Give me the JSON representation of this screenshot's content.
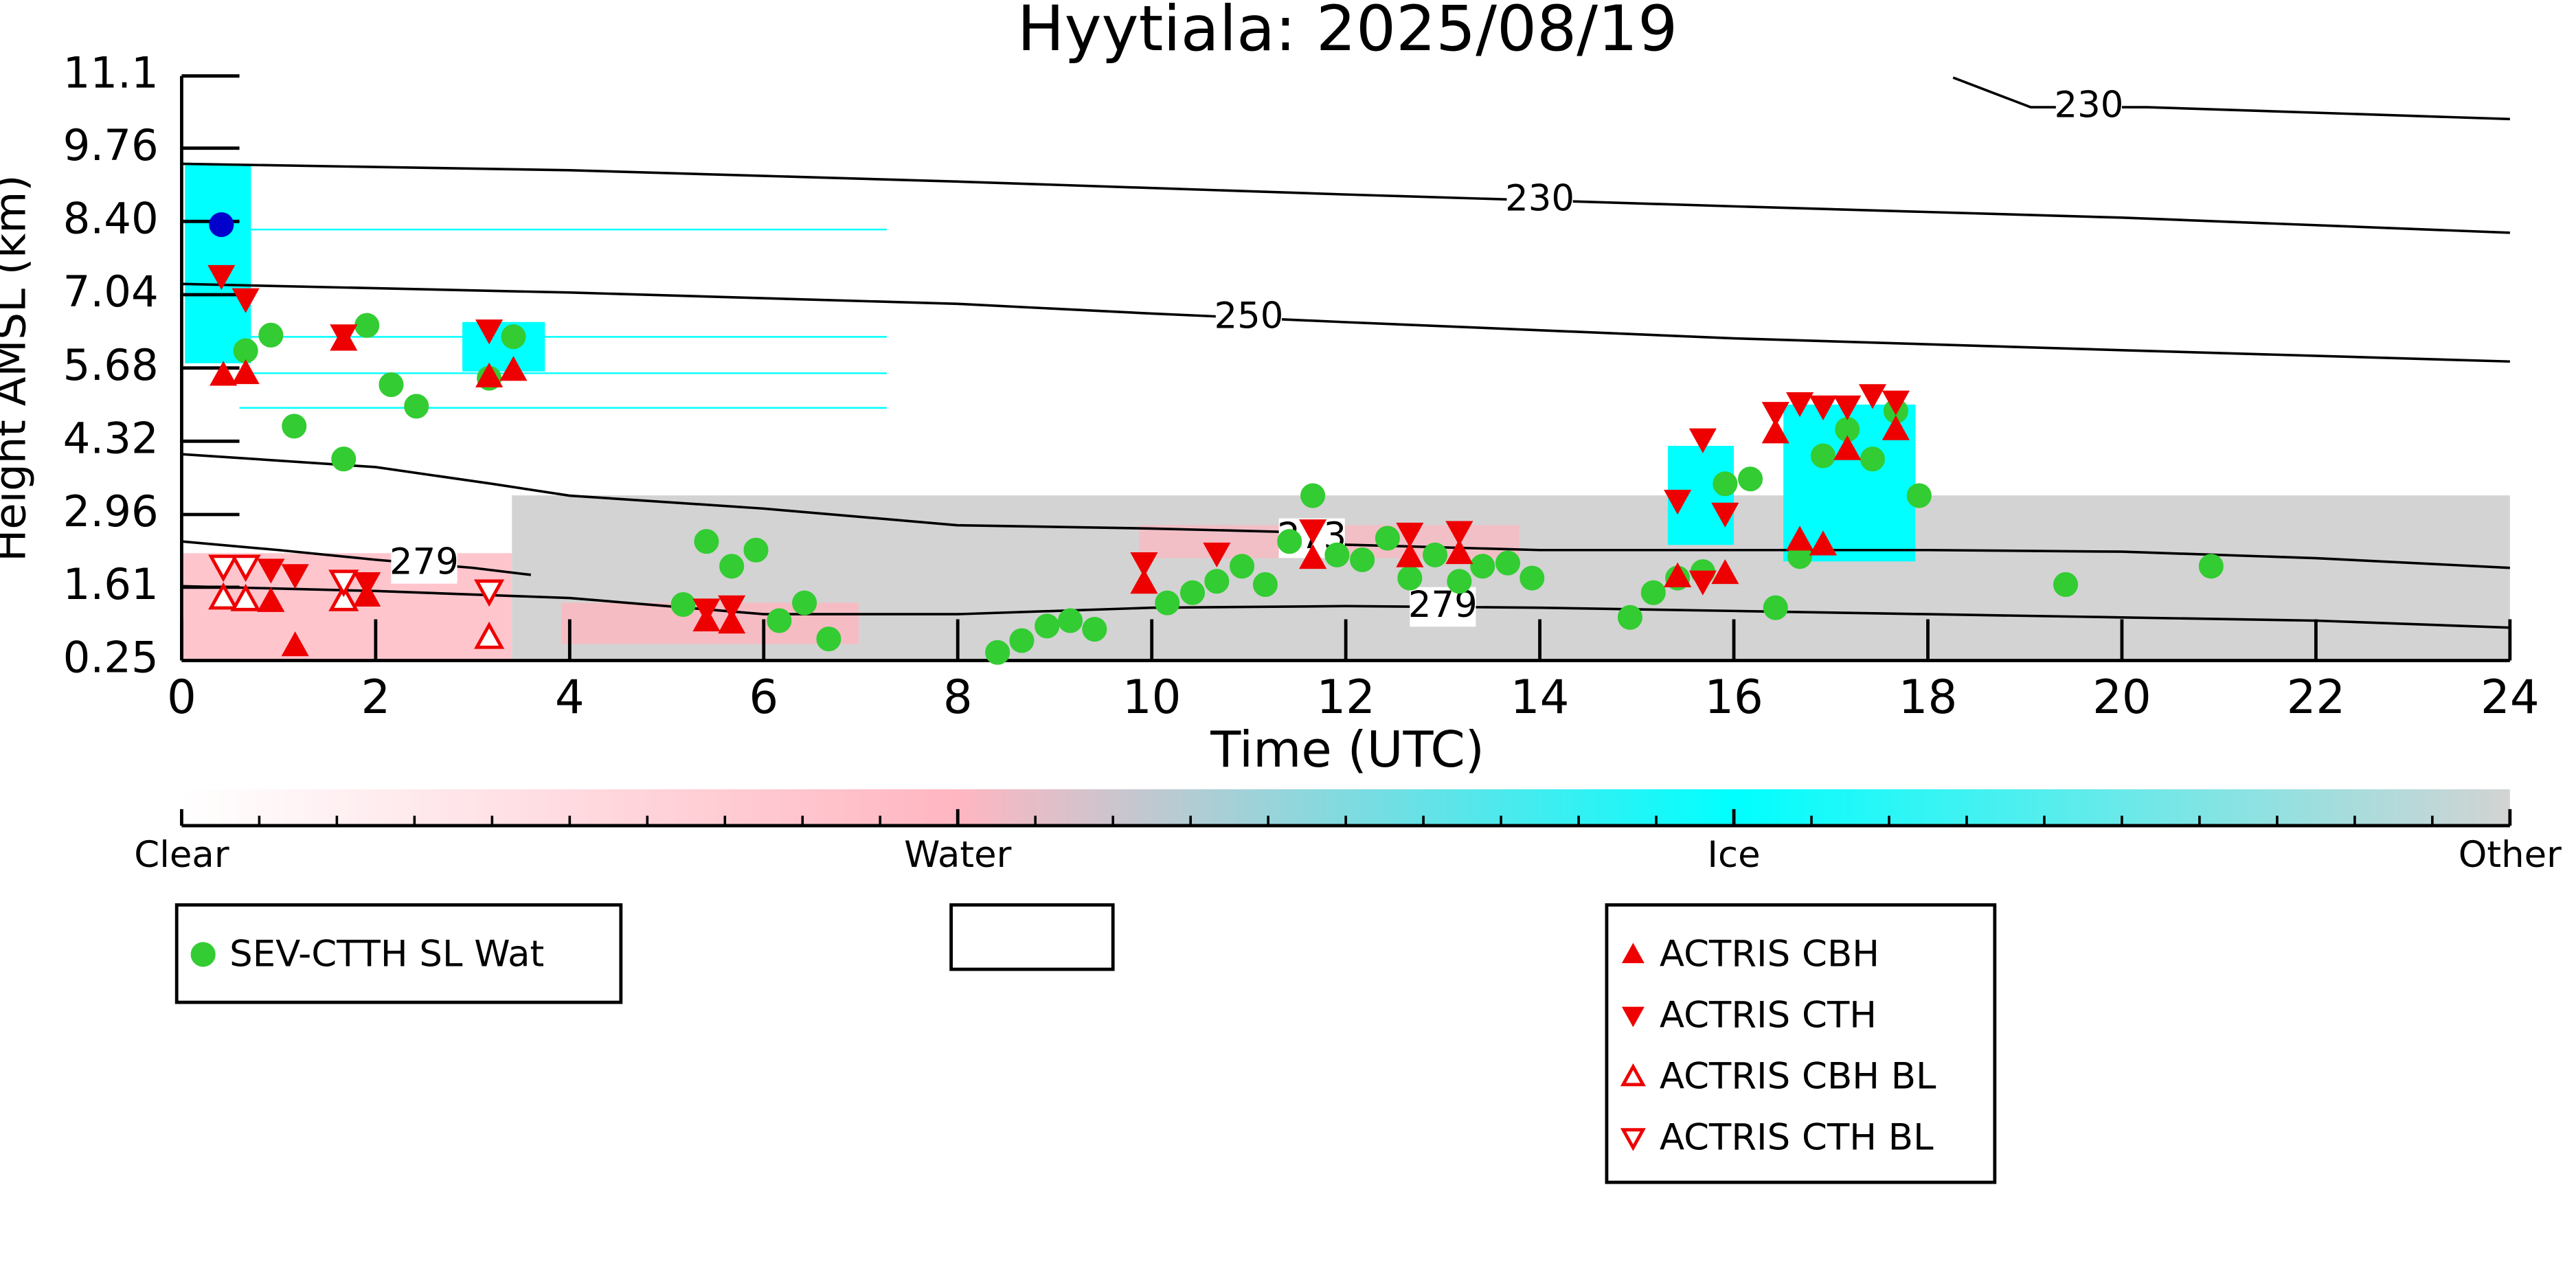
{
  "chart_data": {
    "type": "scatter",
    "title": "Hyytiala: 2025/08/19",
    "xlabel": "Time (UTC)",
    "ylabel": "Height AMSL (km)",
    "xlim": [
      0,
      24
    ],
    "xticks": [
      0,
      2,
      4,
      6,
      8,
      10,
      12,
      14,
      16,
      18,
      20,
      22,
      24
    ],
    "ylim": [
      0.25,
      11.1
    ],
    "yticks": [
      0.25,
      1.61,
      2.96,
      4.32,
      5.68,
      7.04,
      {
        "value": 8.4,
        "label": "8.40"
      },
      9.76,
      11.1
    ],
    "series": [
      {
        "name": "SEV-CTTH SL Wat",
        "color": "#33cc33",
        "marker": "circle",
        "filled": true,
        "x": [
          0.66,
          0.92,
          1.16,
          1.67,
          1.91,
          2.16,
          2.42,
          3.17,
          3.42,
          5.17,
          5.41,
          5.67,
          5.92,
          6.16,
          6.42,
          6.67,
          8.41,
          8.66,
          8.92,
          9.16,
          9.41,
          10.16,
          10.42,
          10.67,
          10.93,
          11.17,
          11.42,
          11.66,
          11.91,
          12.17,
          12.43,
          12.66,
          12.92,
          13.17,
          13.41,
          13.67,
          13.92,
          14.93,
          15.17,
          15.42,
          15.68,
          15.91,
          16.17,
          16.43,
          16.68,
          16.92,
          17.17,
          17.43,
          17.67,
          17.91,
          19.42,
          20.92
        ],
        "values": [
          6.0,
          6.29,
          4.6,
          3.99,
          6.47,
          5.37,
          4.97,
          5.49,
          6.26,
          1.29,
          2.46,
          2.0,
          2.3,
          0.99,
          1.32,
          0.65,
          0.4,
          0.62,
          0.89,
          0.99,
          0.83,
          1.32,
          1.51,
          1.72,
          2.0,
          1.66,
          2.46,
          3.31,
          2.21,
          2.12,
          2.52,
          1.78,
          2.21,
          1.72,
          2.0,
          2.06,
          1.78,
          1.05,
          1.51,
          1.78,
          1.9,
          3.53,
          3.62,
          1.23,
          2.18,
          4.05,
          4.54,
          3.99,
          4.88,
          3.31,
          1.66,
          2.0
        ]
      },
      {
        "color": "#0000cc",
        "marker": "circle",
        "filled": true,
        "x": [
          0.41
        ],
        "values": [
          8.34
        ]
      },
      {
        "name": "ACTRIS CBH",
        "color": "#ee0000",
        "marker": "triangle-up",
        "filled": true,
        "x": [
          0.43,
          0.66,
          0.92,
          1.17,
          1.67,
          1.91,
          3.17,
          3.42,
          5.41,
          5.67,
          9.92,
          11.66,
          12.66,
          13.17,
          15.42,
          15.91,
          16.43,
          16.68,
          16.92,
          17.17,
          17.67
        ],
        "values": [
          5.55,
          5.58,
          1.35,
          0.53,
          6.2,
          1.45,
          5.52,
          5.64,
          0.99,
          0.95,
          1.69,
          2.15,
          2.18,
          2.24,
          1.81,
          1.87,
          4.48,
          2.49,
          2.4,
          4.17,
          4.54
        ]
      },
      {
        "name": "ACTRIS CTH",
        "color": "#ee0000",
        "marker": "triangle-down",
        "filled": true,
        "x": [
          0.41,
          0.66,
          0.92,
          1.17,
          1.67,
          1.91,
          3.17,
          5.41,
          5.67,
          9.92,
          10.67,
          11.66,
          12.66,
          13.17,
          15.42,
          15.68,
          15.68,
          15.91,
          16.43,
          16.68,
          16.92,
          17.17,
          17.43,
          17.67
        ],
        "values": [
          7.39,
          6.96,
          1.94,
          1.84,
          6.29,
          1.69,
          6.38,
          1.2,
          1.26,
          2.06,
          2.24,
          2.67,
          2.61,
          2.64,
          3.22,
          4.36,
          1.72,
          2.98,
          4.85,
          5.03,
          4.97,
          4.97,
          5.18,
          5.06
        ]
      },
      {
        "name": "ACTRIS CBH BL",
        "color": "#ee0000",
        "marker": "triangle-up",
        "filled": false,
        "x": [
          0.43,
          0.66,
          1.67,
          3.17
        ],
        "values": [
          1.41,
          1.38,
          1.38,
          0.68
        ]
      },
      {
        "name": "ACTRIS CTH BL",
        "color": "#ee0000",
        "marker": "triangle-down",
        "filled": false,
        "x": [
          0.43,
          0.66,
          1.67,
          3.17
        ],
        "values": [
          2.0,
          2.0,
          1.72,
          1.54
        ]
      }
    ],
    "contours": [
      {
        "label": "230",
        "x": [
          0,
          4,
          8,
          12,
          16,
          20,
          24
        ],
        "values": [
          9.47,
          9.35,
          9.14,
          8.9,
          8.68,
          8.47,
          8.19
        ]
      },
      {
        "label": "230",
        "x": [
          18.26,
          19.06,
          20.26,
          24
        ],
        "values": [
          11.07,
          10.52,
          10.52,
          10.3
        ]
      },
      {
        "label": "250",
        "x": [
          0,
          4,
          8,
          10,
          12,
          16,
          20,
          24
        ],
        "values": [
          7.24,
          7.08,
          6.87,
          6.69,
          6.53,
          6.23,
          6.01,
          5.8
        ]
      },
      {
        "label": "273",
        "x": [
          0,
          2,
          3.2,
          4,
          6,
          8,
          10,
          11.3,
          12,
          14,
          16,
          18,
          20,
          22,
          24
        ],
        "values": [
          4.08,
          3.84,
          3.53,
          3.31,
          3.07,
          2.76,
          2.7,
          2.64,
          2.4,
          2.3,
          2.3,
          2.3,
          2.27,
          2.15,
          1.97
        ]
      },
      {
        "label": "279",
        "x": [
          0,
          1,
          2,
          3,
          3.6
        ],
        "values": [
          2.46,
          2.3,
          2.12,
          1.97,
          1.84
        ]
      },
      {
        "label": "279",
        "x": [
          0,
          2,
          4,
          6,
          8,
          10,
          12,
          14,
          16,
          18,
          20,
          22,
          24
        ],
        "values": [
          1.63,
          1.54,
          1.41,
          1.11,
          1.11,
          1.23,
          1.26,
          1.23,
          1.17,
          1.11,
          1.05,
          0.99,
          0.86
        ]
      }
    ],
    "colorbar": {
      "labels": [
        "Clear",
        "Water",
        "Ice",
        "Other"
      ],
      "colors": [
        "#ffffff",
        "#ffb6c1",
        "#00ffff",
        "#d3d3d3"
      ]
    }
  }
}
